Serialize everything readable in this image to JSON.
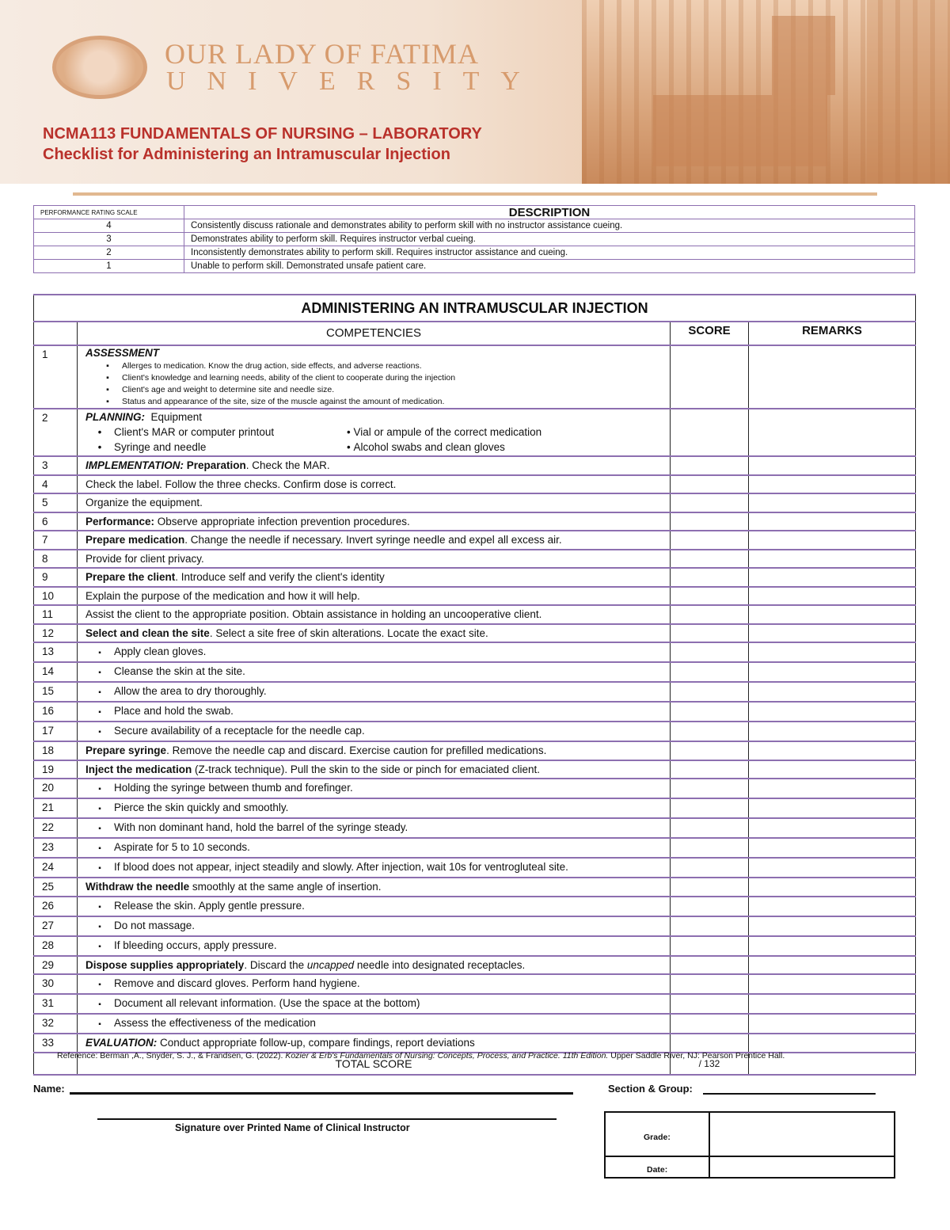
{
  "header": {
    "logo_line1": "OUR LADY OF FATIMA",
    "logo_line2": "UNIVERSITY",
    "course": "NCMA113 FUNDAMENTALS OF NURSING – LABORATORY",
    "title": "Checklist for Administering an Intramuscular Injection"
  },
  "scale": {
    "col1": "PERFORMANCE RATING SCALE",
    "col2": "DESCRIPTION",
    "rows": [
      {
        "r": "4",
        "d": "Consistently discuss rationale and demonstrates ability to perform skill with no instructor assistance cueing."
      },
      {
        "r": "3",
        "d": "Demonstrates ability to perform skill. Requires instructor verbal cueing."
      },
      {
        "r": "2",
        "d": "Inconsistently demonstrates ability to perform skill. Requires instructor assistance and cueing."
      },
      {
        "r": "1",
        "d": "Unable to perform skill. Demonstrated unsafe patient care."
      }
    ]
  },
  "checklist": {
    "title": "ADMINISTERING AN INTRAMUSCULAR INJECTION",
    "col_competencies": "COMPETENCIES",
    "col_score": "SCORE",
    "col_remarks": "REMARKS",
    "assessment": {
      "n": "1",
      "heading": "ASSESSMENT",
      "items": [
        "Allerges to medication. Know the drug action, side effects, and adverse reactions.",
        "Client's knowledge and learning needs, ability of the client to cooperate during the injection",
        "Client's age and weight to determine site and needle size.",
        "Status and appearance of the site, size of the muscle against the amount of medication."
      ]
    },
    "planning": {
      "n": "2",
      "heading": "PLANNING:",
      "sub": "Equipment",
      "items": [
        "Client's MAR or computer printout",
        "Vial or ampule of the correct medication",
        "Syringe and needle",
        "Alcohol swabs and clean gloves"
      ]
    },
    "rows": [
      {
        "n": "3",
        "seg": [
          [
            "IMPLEMENTATION:",
            "bi"
          ],
          [
            " ",
            ""
          ],
          [
            "Preparation",
            ""
          ],
          [
            ". Check the MAR.",
            ""
          ]
        ],
        "bold_lead": false
      },
      {
        "n": "4",
        "seg": [
          [
            "Check the label. Follow the three checks. Confirm dose is correct.",
            ""
          ]
        ]
      },
      {
        "n": "5",
        "seg": [
          [
            "Organize the equipment.",
            ""
          ]
        ]
      },
      {
        "n": "6",
        "seg": [
          [
            "Performance:",
            "b"
          ],
          [
            " Observe appropriate infection prevention procedures.",
            ""
          ]
        ]
      },
      {
        "n": "7",
        "seg": [
          [
            "Prepare medication",
            ""
          ],
          [
            ". Change the needle if necessary. Invert syringe needle and expel all excess air.",
            ""
          ]
        ],
        "lead_bold": true
      },
      {
        "n": "8",
        "seg": [
          [
            "Provide for client privacy.",
            ""
          ]
        ]
      },
      {
        "n": "9",
        "seg": [
          [
            "Prepare the client",
            ""
          ],
          [
            ". Introduce self and verify the client's identity",
            ""
          ]
        ],
        "lead_bold": true
      },
      {
        "n": "10",
        "seg": [
          [
            "Explain the purpose of the medication and how it will help.",
            ""
          ]
        ]
      },
      {
        "n": "11",
        "seg": [
          [
            "Assist the client to the appropriate position. Obtain assistance in holding an uncooperative client.",
            ""
          ]
        ]
      },
      {
        "n": "12",
        "seg": [
          [
            "Select and clean the site",
            ""
          ],
          [
            ". Select a site free of skin alterations. Locate the exact site.",
            ""
          ]
        ],
        "lead_bold": true
      },
      {
        "n": "13",
        "bullet": true,
        "seg": [
          [
            "Apply clean gloves.",
            ""
          ]
        ]
      },
      {
        "n": "14",
        "bullet": true,
        "seg": [
          [
            "Cleanse the skin at the site.",
            ""
          ]
        ]
      },
      {
        "n": "15",
        "bullet": true,
        "seg": [
          [
            "Allow the area to dry thoroughly.",
            ""
          ]
        ]
      },
      {
        "n": "16",
        "bullet": true,
        "seg": [
          [
            "Place and hold the swab.",
            ""
          ]
        ]
      },
      {
        "n": "17",
        "bullet": true,
        "seg": [
          [
            "Secure availability of a receptacle for the needle cap.",
            ""
          ]
        ]
      },
      {
        "n": "18",
        "seg": [
          [
            "Prepare syringe",
            ""
          ],
          [
            ". Remove the needle cap and discard. Exercise caution for prefilled medications.",
            ""
          ]
        ],
        "lead_bold": true
      },
      {
        "n": "19",
        "seg": [
          [
            "Inject the medication",
            ""
          ],
          [
            " (Z-track technique). Pull the skin to the side or pinch for emaciated client.",
            ""
          ]
        ],
        "lead_bold": true
      },
      {
        "n": "20",
        "bullet": true,
        "seg": [
          [
            "Holding the syringe between thumb and forefinger.",
            ""
          ]
        ]
      },
      {
        "n": "21",
        "bullet": true,
        "seg": [
          [
            "Pierce the skin quickly and smoothly.",
            ""
          ]
        ]
      },
      {
        "n": "22",
        "bullet": true,
        "seg": [
          [
            "With non dominant hand, hold the barrel of the syringe steady.",
            ""
          ]
        ]
      },
      {
        "n": "23",
        "bullet": true,
        "seg": [
          [
            "Aspirate for 5 to 10 seconds.",
            ""
          ]
        ]
      },
      {
        "n": "24",
        "bullet": true,
        "seg": [
          [
            "If blood does not appear, inject steadily and slowly. After injection, wait 10s for ventrogluteal site.",
            ""
          ]
        ]
      },
      {
        "n": "25",
        "seg": [
          [
            "Withdraw the needle",
            ""
          ],
          [
            " smoothly at the same angle of insertion.",
            ""
          ]
        ],
        "lead_bold": true
      },
      {
        "n": "26",
        "bullet": true,
        "seg": [
          [
            "Release the skin. Apply gentle pressure.",
            ""
          ]
        ]
      },
      {
        "n": "27",
        "bullet": true,
        "seg": [
          [
            "Do not massage.",
            ""
          ]
        ]
      },
      {
        "n": "28",
        "bullet": true,
        "seg": [
          [
            "If bleeding occurs, apply pressure.",
            ""
          ]
        ]
      },
      {
        "n": "29",
        "seg": [
          [
            "Dispose supplies appropriately",
            ""
          ],
          [
            ". Discard the ",
            ""
          ],
          [
            "uncapped",
            "i"
          ],
          [
            " needle into designated receptacles.",
            ""
          ]
        ],
        "lead_bold": true
      },
      {
        "n": "30",
        "bullet": true,
        "seg": [
          [
            "Remove and discard gloves. Perform hand hygiene.",
            ""
          ]
        ]
      },
      {
        "n": "31",
        "bullet": true,
        "seg": [
          [
            "Document all relevant information. (Use the space at the bottom)",
            ""
          ]
        ]
      },
      {
        "n": "32",
        "bullet": true,
        "seg": [
          [
            "Assess the effectiveness of the medication",
            ""
          ]
        ]
      },
      {
        "n": "33",
        "seg": [
          [
            "EVALUATION:",
            "bi"
          ],
          [
            " Conduct appropriate follow-up, compare findings, report deviations",
            ""
          ]
        ]
      }
    ],
    "total_label": "TOTAL SCORE",
    "total_max": "/ 132"
  },
  "reference": {
    "pre": "Reference: Berman ,A., Snyder, S. J., & Frandsen, G. (2022). ",
    "book": "Kozier & Erb's Fundamentals of Nursing: Concepts, Process, and Practice. 11th Edition.",
    "post": " Upper Saddle River, NJ: Pearson Prentice Hall."
  },
  "footer": {
    "name_label": "Name:",
    "section_label": "Section & Group:",
    "signature_label": "Signature over Printed Name of Clinical Instructor",
    "grade_label": "Grade:",
    "date_label": "Date:"
  }
}
